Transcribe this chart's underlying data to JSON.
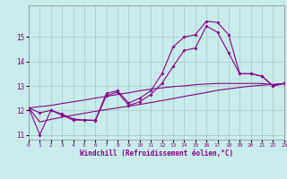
{
  "xlabel": "Windchill (Refroidissement éolien,°C)",
  "bg_color": "#c8ecec",
  "grid_color": "#aacccc",
  "line_color": "#880088",
  "line1": [
    12.1,
    11.9,
    12.0,
    11.8,
    11.6,
    11.6,
    11.6,
    12.7,
    12.8,
    12.3,
    12.5,
    12.8,
    13.5,
    14.6,
    15.0,
    15.1,
    15.65,
    15.6,
    15.1,
    13.5,
    13.5,
    13.4,
    13.0,
    13.1
  ],
  "line2": [
    12.1,
    11.0,
    12.0,
    11.85,
    11.65,
    11.6,
    11.58,
    12.6,
    12.75,
    12.2,
    12.35,
    12.65,
    13.1,
    13.8,
    14.45,
    14.55,
    15.45,
    15.2,
    14.35,
    13.5,
    13.5,
    13.4,
    13.0,
    13.1
  ],
  "line_straight1": [
    12.1,
    12.15,
    12.2,
    12.28,
    12.35,
    12.42,
    12.5,
    12.57,
    12.65,
    12.72,
    12.8,
    12.87,
    12.92,
    12.97,
    13.0,
    13.05,
    13.08,
    13.1,
    13.1,
    13.1,
    13.1,
    13.1,
    13.05,
    13.1
  ],
  "line_straight2": [
    12.1,
    11.52,
    11.63,
    11.72,
    11.8,
    11.88,
    11.96,
    12.03,
    12.1,
    12.17,
    12.24,
    12.32,
    12.4,
    12.48,
    12.57,
    12.65,
    12.73,
    12.82,
    12.88,
    12.94,
    12.99,
    13.03,
    13.06,
    13.1
  ],
  "xlim": [
    0,
    23
  ],
  "ylim": [
    10.8,
    16.3
  ],
  "yticks": [
    11,
    12,
    13,
    14,
    15
  ],
  "ytick_labels": [
    "11",
    "12",
    "13",
    "14",
    "15"
  ],
  "xticks": [
    0,
    1,
    2,
    3,
    4,
    5,
    6,
    7,
    8,
    9,
    10,
    11,
    12,
    13,
    14,
    15,
    16,
    17,
    18,
    19,
    20,
    21,
    22,
    23
  ]
}
